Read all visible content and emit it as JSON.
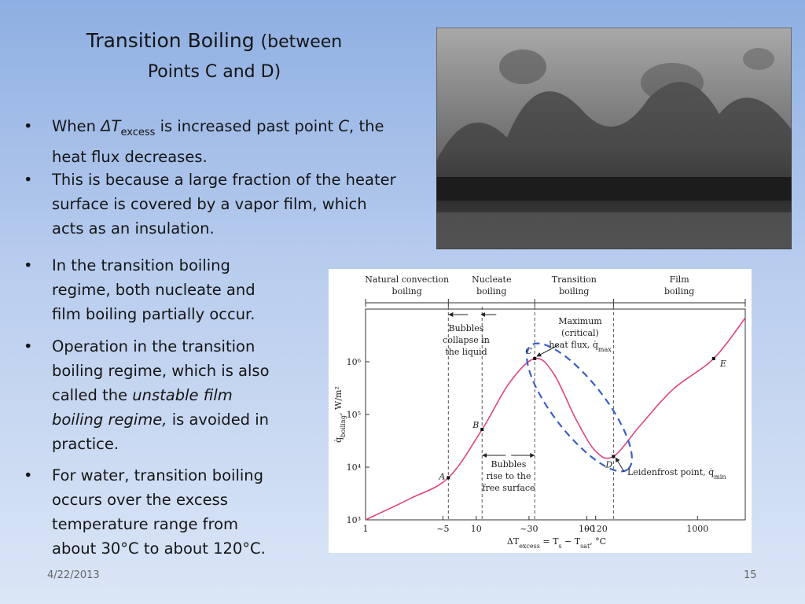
{
  "slide": {
    "title": "Transition Boiling",
    "title_suffix": "(between Points C and D)",
    "bullets": [
      [
        "When ",
        "ΔT",
        "excess",
        " is increased past point ",
        "C",
        ", the heat flux decreases."
      ],
      [
        "This is because a large fraction of the heater surface is covered by a vapor film, which acts as an insulation."
      ],
      [
        "In the transition boiling regime, both nucleate and film boiling partially occur."
      ],
      [
        "Operation in the transition boiling regime, which is also called the ",
        "unstable film boiling regime,",
        " is avoided in practice."
      ],
      [
        "For water, transition boiling occurs over the excess temperature range from about 30°C to about 120°C."
      ]
    ],
    "date": "4/22/2013",
    "page_number": "15"
  },
  "chart_data": {
    "type": "line",
    "log_x": true,
    "log_y": true,
    "color": "#e0447f",
    "regimes": [
      [
        "Natural convection",
        "boiling"
      ],
      [
        "Nucleate",
        "boiling"
      ],
      [
        "Transition",
        "boiling"
      ],
      [
        "Film",
        "boiling"
      ]
    ],
    "x_label": [
      "ΔT",
      "excess",
      " = T",
      "s",
      " − T",
      "sat",
      ", °C"
    ],
    "y_label": [
      "q̇",
      "boiling",
      ", W/m²"
    ],
    "xlim": [
      1,
      2700
    ],
    "ylim": [
      1000,
      10000000
    ],
    "xticks": [
      1,
      {
        "value": 5,
        "label": "~5"
      },
      10,
      {
        "value": 30,
        "label": "~30"
      },
      100,
      {
        "value": 120,
        "label": "~120"
      },
      1000
    ],
    "yticks": [
      {
        "value": 1000,
        "label": "10³"
      },
      {
        "value": 10000,
        "label": "10⁴"
      },
      {
        "value": 100000,
        "label": "10⁵"
      },
      {
        "value": 1000000,
        "label": "10⁶"
      }
    ],
    "x": [
      1,
      2.5,
      5.6,
      11.3,
      20,
      33.8,
      50,
      80,
      120,
      174,
      300,
      600,
      1400,
      2700
    ],
    "values": [
      1000,
      2500,
      6300,
      52000,
      400000,
      1150000,
      600000,
      80000,
      20000,
      16000,
      60000,
      300000,
      1150000,
      6800000
    ],
    "points": [
      {
        "label": "A",
        "x": 5.6,
        "y": 6300
      },
      {
        "label": "B",
        "x": 11.3,
        "y": 52000
      },
      {
        "label": "C",
        "x": 33.8,
        "y": 1150000
      },
      {
        "label": "D",
        "x": 174,
        "y": 16000
      },
      {
        "label": "E",
        "x": 1400,
        "y": 1150000
      }
    ],
    "annotations": [
      [
        [
          "Bubbles"
        ],
        [
          "collapse in"
        ],
        [
          "the liquid"
        ]
      ],
      [
        [
          "Maximum"
        ],
        [
          "(critical)"
        ],
        [
          "heat flux, q̇",
          "max"
        ]
      ],
      [
        [
          "Bubbles"
        ],
        [
          "rise to the"
        ],
        [
          "free surface"
        ]
      ],
      [
        [
          "Leidenfrost point, q̇",
          "min"
        ]
      ]
    ]
  }
}
